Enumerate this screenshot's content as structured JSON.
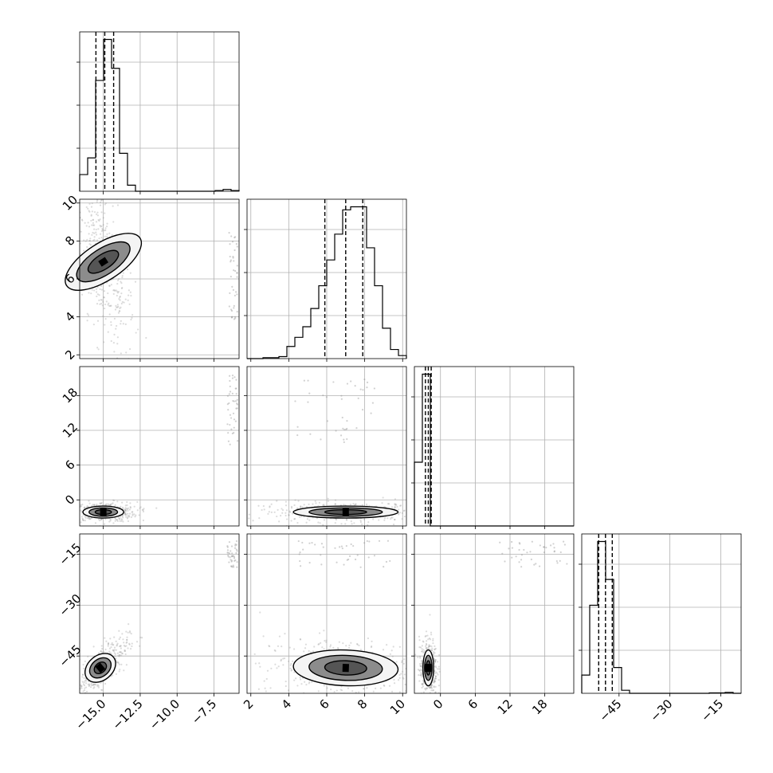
{
  "chart_data": {
    "type": "corner",
    "title": "",
    "grid": true,
    "colors": {
      "ink": "#000000",
      "grid": "#b0b0b0",
      "scatter": "#9a9a9a",
      "fill_dark": "#555555",
      "fill_mid": "#8c8c8c",
      "fill_light": "#f4f4f4"
    },
    "parameters": [
      {
        "index": 0,
        "range": [
          -16.6,
          -5.8
        ],
        "ticks": [
          -15.0,
          -12.5,
          -10.0,
          -7.5
        ],
        "tick_labels": [
          "−15.0",
          "−12.5",
          "−10.0",
          "−7.5"
        ],
        "quantiles": [
          -15.5,
          -14.9,
          -14.3
        ]
      },
      {
        "index": 1,
        "range": [
          1.8,
          10.2
        ],
        "ticks": [
          2,
          4,
          6,
          8,
          10
        ],
        "tick_labels": [
          "2",
          "4",
          "6",
          "8",
          "10"
        ],
        "quantiles": [
          5.9,
          7.0,
          7.9
        ]
      },
      {
        "index": 2,
        "range": [
          -4.5,
          23.0
        ],
        "ticks": [
          0,
          6,
          12,
          18
        ],
        "tick_labels": [
          "0",
          "6",
          "12",
          "18"
        ],
        "quantiles": [
          -2.6,
          -2.1,
          -1.6
        ]
      },
      {
        "index": 3,
        "range": [
          -56.0,
          -9.0
        ],
        "ticks": [
          -45,
          -30,
          -15
        ],
        "tick_labels": [
          "−45",
          "−30",
          "−15"
        ],
        "quantiles": [
          -51.0,
          -49.0,
          -47.0
        ]
      }
    ],
    "histograms": [
      {
        "param": 0,
        "bin_edges": [
          -16.6,
          -16.06,
          -15.52,
          -14.98,
          -14.44,
          -13.9,
          -13.36,
          -12.82,
          -12.28,
          -11.74,
          -11.2,
          -10.66,
          -10.12,
          -9.58,
          -9.04,
          -8.5,
          -7.96,
          -7.42,
          -6.88,
          -6.34,
          -5.8
        ],
        "counts": [
          0.11,
          0.22,
          0.73,
          1.0,
          0.81,
          0.25,
          0.04,
          0,
          0,
          0,
          0,
          0,
          0,
          0,
          0,
          0,
          0,
          0.005,
          0.012,
          0.005
        ]
      },
      {
        "param": 1,
        "bin_edges": [
          1.8,
          2.22,
          2.64,
          3.06,
          3.48,
          3.9,
          4.32,
          4.74,
          5.16,
          5.58,
          6.0,
          6.42,
          6.84,
          7.26,
          7.68,
          8.1,
          8.52,
          8.94,
          9.36,
          9.78,
          10.2
        ],
        "counts": [
          0,
          0,
          0.006,
          0.006,
          0.013,
          0.08,
          0.14,
          0.21,
          0.33,
          0.48,
          0.65,
          0.82,
          0.98,
          1.0,
          1.0,
          0.73,
          0.48,
          0.2,
          0.06,
          0.02
        ]
      },
      {
        "param": 2,
        "bin_edges": [
          -4.5,
          -3.125,
          -1.75,
          -0.375,
          1.0,
          2.375,
          3.75,
          5.125,
          6.5,
          7.875,
          9.25,
          10.625,
          12.0,
          13.375,
          14.75,
          16.125,
          17.5,
          18.875,
          20.25,
          21.625,
          23.0
        ],
        "counts": [
          0.42,
          1.0,
          0,
          0,
          0,
          0,
          0,
          0,
          0,
          0,
          0,
          0,
          0,
          0,
          0,
          0,
          0,
          0,
          0,
          0
        ]
      },
      {
        "param": 3,
        "bin_edges": [
          -56.0,
          -53.65,
          -51.3,
          -48.95,
          -46.6,
          -44.25,
          -41.9,
          -39.55,
          -37.2,
          -34.85,
          -32.5,
          -30.15,
          -27.8,
          -25.45,
          -23.1,
          -20.75,
          -18.4,
          -16.05,
          -13.7,
          -11.35,
          -9.0
        ],
        "counts": [
          0.12,
          0.58,
          1.0,
          0.75,
          0.17,
          0.02,
          0,
          0,
          0,
          0,
          0,
          0,
          0,
          0,
          0,
          0,
          0.003,
          0.003,
          0.006,
          0
        ]
      }
    ],
    "scatter_panels": [
      {
        "row": 1,
        "col": 0,
        "center": [
          -15.0,
          6.9
        ],
        "sd": [
          0.55,
          1.2
        ],
        "corr": -0.55,
        "outliers": {
          "x": [
            -6.5,
            -5.9
          ],
          "y": [
            3.8,
            8.5
          ]
        }
      },
      {
        "row": 2,
        "col": 0,
        "center": [
          -15.0,
          -2.1
        ],
        "sd": [
          0.6,
          0.45
        ],
        "corr": 0.0,
        "outliers": {
          "x": [
            -6.6,
            -5.9
          ],
          "y": [
            9.5,
            21.5
          ]
        }
      },
      {
        "row": 2,
        "col": 1,
        "center": [
          7.0,
          -2.1
        ],
        "sd": [
          1.2,
          0.45
        ],
        "corr": 0.0,
        "outliers": {
          "x": [
            4.3,
            8.6
          ],
          "y": [
            9.5,
            21.5
          ]
        }
      },
      {
        "row": 3,
        "col": 0,
        "center": [
          -15.2,
          -48.5
        ],
        "sd": [
          0.5,
          2.4
        ],
        "corr": 0.75,
        "outliers": {
          "x": [
            -6.6,
            -5.9
          ],
          "y": [
            -19.0,
            -11.0
          ]
        }
      },
      {
        "row": 3,
        "col": 1,
        "center": [
          7.0,
          -48.5
        ],
        "sd": [
          1.2,
          2.3
        ],
        "corr": -0.1,
        "outliers": {
          "x": [
            4.5,
            9.5
          ],
          "y": [
            -19.0,
            -11.0
          ]
        }
      },
      {
        "row": 3,
        "col": 2,
        "center": [
          -2.1,
          -48.5
        ],
        "sd": [
          0.4,
          2.3
        ],
        "corr": 0.0,
        "outliers": {
          "x": [
            10.0,
            22.5
          ],
          "y": [
            -19.0,
            -11.0
          ]
        }
      }
    ]
  }
}
